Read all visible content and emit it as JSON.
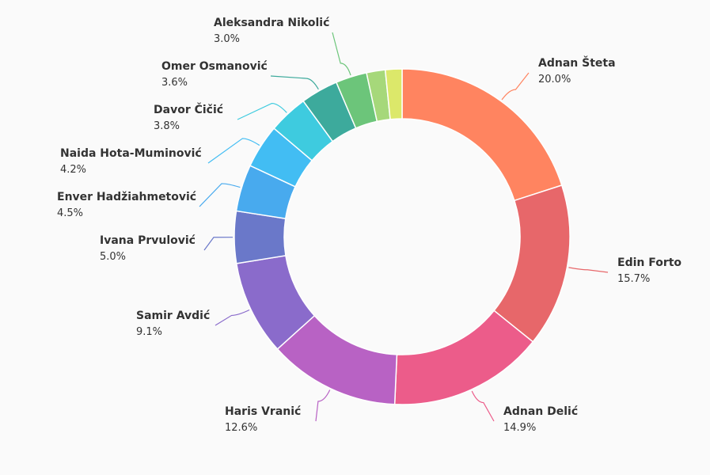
{
  "chart_data": {
    "type": "pie",
    "donut": true,
    "title": "",
    "legend": "none",
    "slices": [
      {
        "name": "Adnan Šteta",
        "value": 20.0,
        "label": "20.0%",
        "color": "#ff8460"
      },
      {
        "name": "Edin Forto",
        "value": 15.7,
        "label": "15.7%",
        "color": "#e7676a"
      },
      {
        "name": "Adnan Delić",
        "value": 14.9,
        "label": "14.9%",
        "color": "#ec5c8a"
      },
      {
        "name": "Haris Vranić",
        "value": 12.6,
        "label": "12.6%",
        "color": "#b862c4"
      },
      {
        "name": "Samir Avdić",
        "value": 9.1,
        "label": "9.1%",
        "color": "#8a6bcb"
      },
      {
        "name": "Ivana Prvulović",
        "value": 5.0,
        "label": "5.0%",
        "color": "#6a78c9"
      },
      {
        "name": "Enver Hadžiahmetović",
        "value": 4.5,
        "label": "4.5%",
        "color": "#48aaee"
      },
      {
        "name": "Naida Hota-Muminović",
        "value": 4.2,
        "label": "4.2%",
        "color": "#42bdf3"
      },
      {
        "name": "Davor Čičić",
        "value": 3.8,
        "label": "3.8%",
        "color": "#3ecbdf"
      },
      {
        "name": "Omer Osmanović",
        "value": 3.6,
        "label": "3.6%",
        "color": "#3daa9c"
      },
      {
        "name": "Aleksandra Nikolić",
        "value": 3.0,
        "label": "3.0%",
        "color": "#6cc57a"
      },
      {
        "name": "",
        "value": 1.8,
        "label": "",
        "color": "#a6d87a"
      },
      {
        "name": "",
        "value": 1.6,
        "label": "",
        "color": "#dce86a"
      }
    ]
  }
}
